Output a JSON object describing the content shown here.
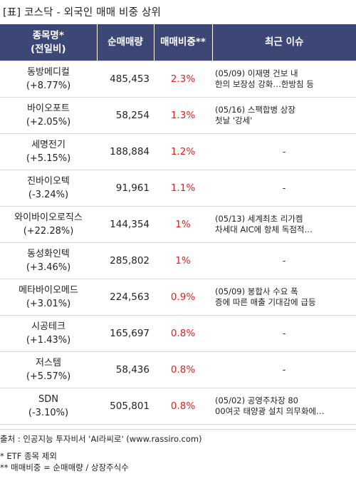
{
  "title": "[표] 코스닥 - 외국인 매매 비중 상위",
  "headers": {
    "name": "종목명*",
    "name_sub": "(전일비)",
    "volume": "순매매량",
    "ratio": "매매비중**",
    "issue": "최근 이슈"
  },
  "rows": [
    {
      "name": "동방메디컬",
      "change": "(+8.77%)",
      "volume": "485,453",
      "ratio": "2.3%",
      "issue_line1": "(05/09) 이재명 건보 내",
      "issue_line2": " 한의 보장성 강화…한방침 등"
    },
    {
      "name": "바이오포트",
      "change": "(+2.05%)",
      "volume": "58,254",
      "ratio": "1.3%",
      "issue_line1": "(05/16) 스팩합병 상장",
      "issue_line2": "첫날 '강세'"
    },
    {
      "name": "세명전기",
      "change": "(+5.15%)",
      "volume": "188,884",
      "ratio": "1.2%",
      "issue_line1": "-",
      "issue_line2": ""
    },
    {
      "name": "진바이오텍",
      "change": "(-3.24%)",
      "volume": "91,961",
      "ratio": "1.1%",
      "issue_line1": "-",
      "issue_line2": ""
    },
    {
      "name": "와이바이오로직스",
      "change": "(+22.28%)",
      "volume": "144,354",
      "ratio": "1%",
      "issue_line1": "(05/13) 세계최초 리가켐",
      "issue_line2": " 차세대 AIC에 항체 독점적…"
    },
    {
      "name": "동성화인텍",
      "change": "(+3.46%)",
      "volume": "285,802",
      "ratio": "1%",
      "issue_line1": "-",
      "issue_line2": ""
    },
    {
      "name": "메타바이오메드",
      "change": "(+3.01%)",
      "volume": "224,563",
      "ratio": "0.9%",
      "issue_line1": "(05/09) 봉합사 수요 폭",
      "issue_line2": "증에 따른 매출 기대감에 급등"
    },
    {
      "name": "시공테크",
      "change": "(+1.43%)",
      "volume": "165,697",
      "ratio": "0.8%",
      "issue_line1": "-",
      "issue_line2": ""
    },
    {
      "name": "저스템",
      "change": "(+5.57%)",
      "volume": "58,436",
      "ratio": "0.8%",
      "issue_line1": "-",
      "issue_line2": ""
    },
    {
      "name": "SDN",
      "change": "(-3.10%)",
      "volume": "505,801",
      "ratio": "0.8%",
      "issue_line1": "(05/02) 공영주차장 80",
      "issue_line2": "00여곳 태양광 설치 의무화에…"
    }
  ],
  "footer": {
    "source": "출처 : 인공지능 투자비서 'AI라씨로' (www.rassiro.com)",
    "note1": "* ETF 종목 제외",
    "note2": "** 매매비중 = 순매매량 / 상장주식수"
  },
  "colors": {
    "header_bg": "#3c4775",
    "ratio_text": "#e0211d",
    "row_border": "#d8d8d8"
  }
}
